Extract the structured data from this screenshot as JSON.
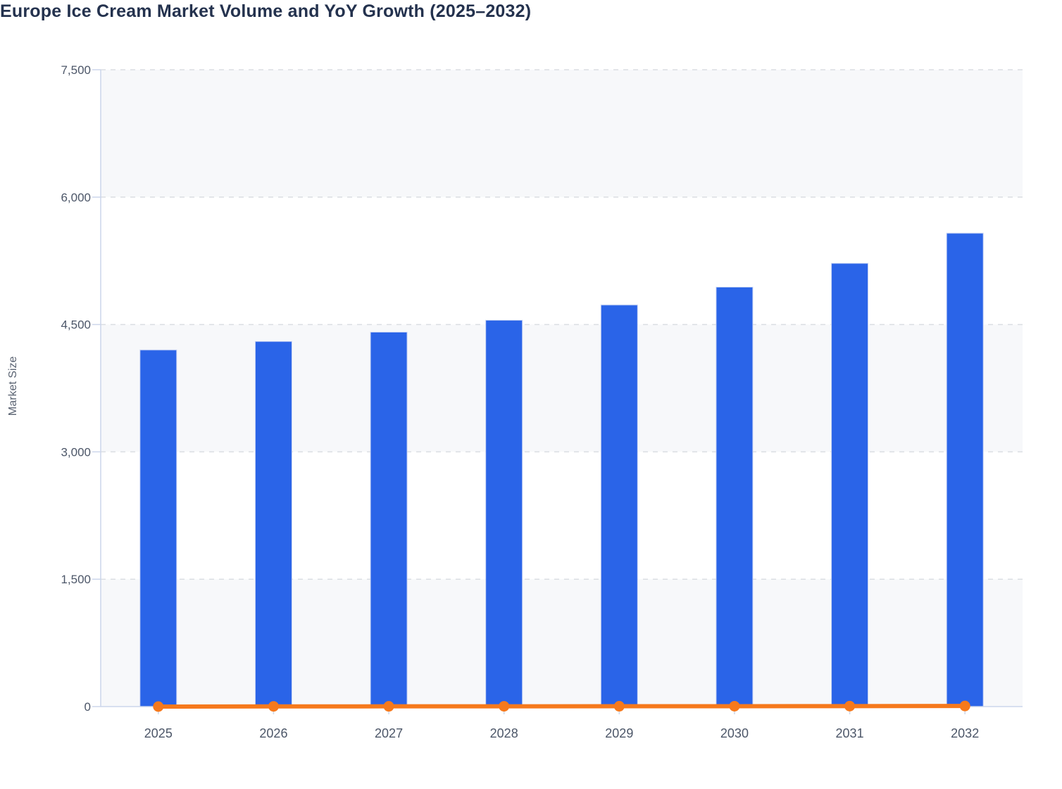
{
  "title": "Europe Ice Cream Market Volume and YoY Growth (2025–2032)",
  "y_axis": {
    "title": "Market Size",
    "tick_labels": [
      "0",
      "1,500",
      "3,000",
      "4,500",
      "6,000",
      "7,500"
    ]
  },
  "x_axis": {
    "tick_labels": [
      "2025",
      "2026",
      "2027",
      "2028",
      "2029",
      "2030",
      "2031",
      "2032"
    ]
  },
  "colors": {
    "bar": "#2a64e8",
    "bar_edge": "#c7d3f4",
    "line": "#f6791c",
    "title": "#24324e",
    "axis_label": "#4c5668",
    "axis_title": "#5a6372",
    "axis_line": "#ccd6eb",
    "gridline": "#dbdee3",
    "band": "#f7f8fa",
    "background": "#ffffff"
  },
  "chart_data": {
    "type": "bar",
    "subtype": "bar+line combo",
    "title": "Europe Ice Cream Market Volume and YoY Growth (2025–2032)",
    "categories": [
      "2025",
      "2026",
      "2027",
      "2028",
      "2029",
      "2030",
      "2031",
      "2032"
    ],
    "series": [
      {
        "name": "Market Volume",
        "type": "bar",
        "values": [
          4200,
          4300,
          4410,
          4550,
          4730,
          4940,
          5220,
          5575
        ]
      },
      {
        "name": "YoY Growth",
        "type": "line",
        "values": [
          0,
          2.4,
          2.6,
          3.2,
          4.0,
          4.4,
          5.7,
          6.8
        ],
        "note": "plotted on the same 0–7500 axis, so the line renders flat at ~0"
      }
    ],
    "xlabel": "",
    "ylabel": "Market Size",
    "ylim": [
      0,
      7500
    ],
    "yticks": [
      0,
      1500,
      3000,
      4500,
      6000,
      7500
    ],
    "grid": "dashed horizontal gridlines, alternating band fills between them",
    "legend": "none"
  }
}
